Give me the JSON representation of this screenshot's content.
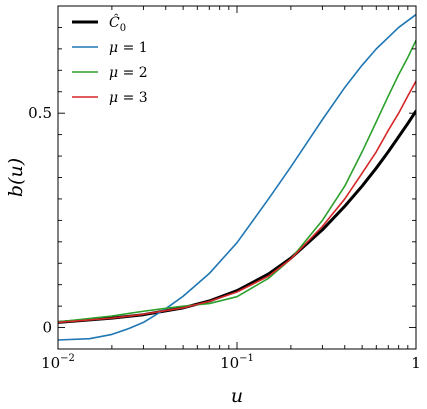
{
  "chart_data": {
    "type": "line",
    "xlabel": "u",
    "ylabel": "b(u)",
    "xscale": "log",
    "xlim": [
      0.01,
      1
    ],
    "ylim": [
      -0.05,
      0.75
    ],
    "grid": false,
    "legend_position": "top-left",
    "x_ticks": [
      {
        "value": 0.01,
        "base": "10",
        "exp": "−2"
      },
      {
        "value": 0.1,
        "base": "10",
        "exp": "−1"
      },
      {
        "value": 1,
        "base": "1",
        "exp": ""
      }
    ],
    "y_ticks": [
      {
        "value": 0,
        "label": "0"
      },
      {
        "value": 0.5,
        "label": "0.5"
      }
    ],
    "series": [
      {
        "name": "Ĉ0",
        "color": "#000000",
        "linewidth": 3,
        "x": [
          0.01,
          0.02,
          0.03,
          0.05,
          0.07,
          0.1,
          0.15,
          0.2,
          0.3,
          0.4,
          0.5,
          0.6,
          0.7,
          0.8,
          0.9,
          1.0
        ],
        "y": [
          0.012,
          0.022,
          0.03,
          0.046,
          0.062,
          0.086,
          0.125,
          0.162,
          0.228,
          0.283,
          0.33,
          0.372,
          0.41,
          0.445,
          0.476,
          0.505
        ]
      },
      {
        "name": "μ = 1",
        "color": "#1f77b4",
        "linewidth": 1.6,
        "x": [
          0.01,
          0.015,
          0.02,
          0.025,
          0.03,
          0.04,
          0.05,
          0.07,
          0.1,
          0.15,
          0.2,
          0.3,
          0.4,
          0.5,
          0.6,
          0.8,
          1.0
        ],
        "y": [
          -0.029,
          -0.026,
          -0.016,
          -0.002,
          0.012,
          0.044,
          0.073,
          0.126,
          0.198,
          0.3,
          0.375,
          0.485,
          0.56,
          0.612,
          0.65,
          0.7,
          0.73
        ]
      },
      {
        "name": "μ = 2",
        "color": "#2ca02c",
        "linewidth": 1.6,
        "x": [
          0.01,
          0.02,
          0.03,
          0.04,
          0.05,
          0.07,
          0.1,
          0.15,
          0.2,
          0.3,
          0.4,
          0.5,
          0.6,
          0.7,
          0.8,
          0.9,
          1.0
        ],
        "y": [
          0.013,
          0.027,
          0.038,
          0.045,
          0.05,
          0.056,
          0.072,
          0.115,
          0.16,
          0.25,
          0.33,
          0.41,
          0.48,
          0.54,
          0.59,
          0.63,
          0.67
        ]
      },
      {
        "name": "μ = 3",
        "color": "#d62728",
        "linewidth": 1.6,
        "x": [
          0.01,
          0.02,
          0.03,
          0.05,
          0.07,
          0.1,
          0.15,
          0.2,
          0.3,
          0.4,
          0.5,
          0.6,
          0.7,
          0.8,
          0.9,
          1.0
        ],
        "y": [
          0.012,
          0.022,
          0.031,
          0.046,
          0.061,
          0.083,
          0.12,
          0.16,
          0.236,
          0.3,
          0.36,
          0.41,
          0.46,
          0.5,
          0.54,
          0.575
        ]
      }
    ]
  }
}
